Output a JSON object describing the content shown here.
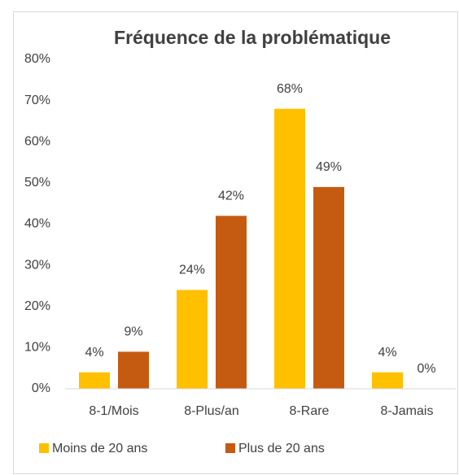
{
  "chart_data": {
    "type": "bar",
    "title": "Fréquence de la problématique",
    "categories": [
      "8-1/Mois",
      "8-Plus/an",
      "8-Rare",
      "8-Jamais"
    ],
    "series": [
      {
        "name": "Moins de 20 ans",
        "color": "#FFC000",
        "values": [
          4,
          24,
          68,
          4
        ],
        "value_labels": [
          "4%",
          "24%",
          "68%",
          "4%"
        ]
      },
      {
        "name": "Plus de 20 ans",
        "color": "#C55A11",
        "values": [
          9,
          42,
          49,
          0
        ],
        "value_labels": [
          "9%",
          "42%",
          "49%",
          "0%"
        ]
      }
    ],
    "ylim": [
      0,
      80
    ],
    "yticks": [
      {
        "value": 0,
        "label": "0%"
      },
      {
        "value": 10,
        "label": "10%"
      },
      {
        "value": 20,
        "label": "20%"
      },
      {
        "value": 30,
        "label": "30%"
      },
      {
        "value": 40,
        "label": "40%"
      },
      {
        "value": 50,
        "label": "50%"
      },
      {
        "value": 60,
        "label": "60%"
      },
      {
        "value": 70,
        "label": "70%"
      },
      {
        "value": 80,
        "label": "80%"
      }
    ],
    "grid": false,
    "legend": "bottom"
  }
}
